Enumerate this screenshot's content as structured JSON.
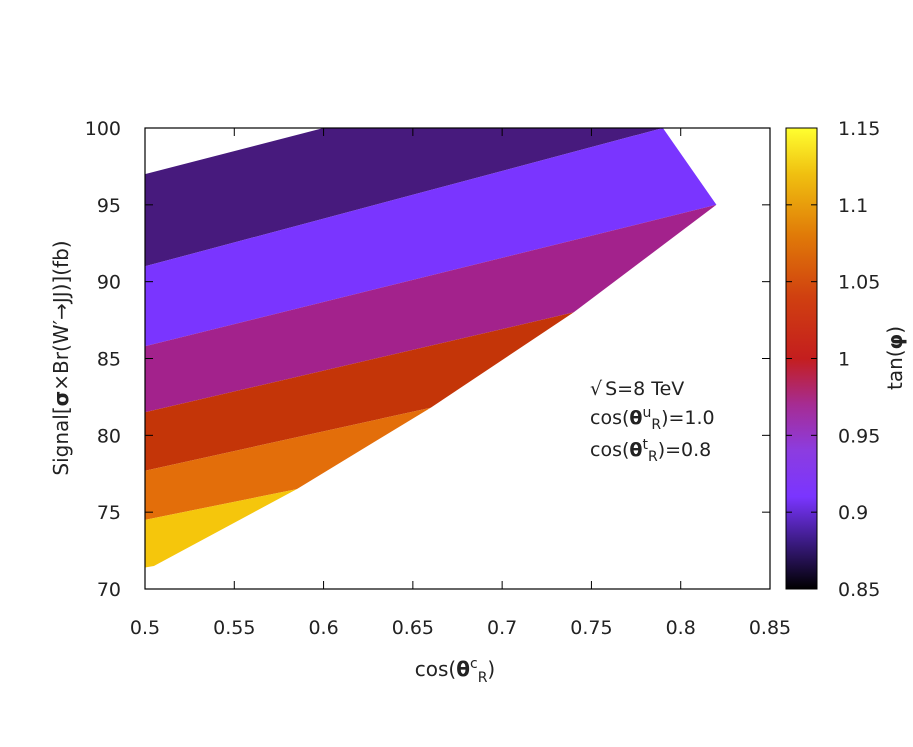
{
  "chart_data": {
    "type": "area",
    "xlabel": {
      "prefix": "cos(",
      "theta": "θ",
      "sup": "c",
      "sub": "R",
      "suffix": ")"
    },
    "ylabel": {
      "prefix": "Signal[",
      "sigma": "σ",
      "times": "×",
      "middle": "Br(W′→JJ)](fb)"
    },
    "xlim": [
      0.5,
      0.85
    ],
    "ylim": [
      70,
      100
    ],
    "xticks": [
      "0.5",
      "0.55",
      "0.6",
      "0.65",
      "0.7",
      "0.75",
      "0.8",
      "0.85"
    ],
    "yticks": [
      "70",
      "75",
      "80",
      "85",
      "90",
      "95",
      "100"
    ],
    "colorbar": {
      "label": {
        "prefix": "tan(",
        "phi": "φ",
        "suffix": ")"
      },
      "range": [
        0.85,
        1.15
      ],
      "ticks": [
        "0.85",
        "0.9",
        "0.95",
        "1",
        "1.05",
        "1.1",
        "1.15"
      ],
      "stops": [
        {
          "v": 0.85,
          "color": "#000000"
        },
        {
          "v": 0.88,
          "color": "#3a1a80"
        },
        {
          "v": 0.91,
          "color": "#7a35ff"
        },
        {
          "v": 0.94,
          "color": "#8c3ce0"
        },
        {
          "v": 0.97,
          "color": "#a62c93"
        },
        {
          "v": 1.0,
          "color": "#c41e1e"
        },
        {
          "v": 1.04,
          "color": "#d04010"
        },
        {
          "v": 1.08,
          "color": "#e07a08"
        },
        {
          "v": 1.12,
          "color": "#f0c010"
        },
        {
          "v": 1.15,
          "color": "#ffff30"
        }
      ]
    },
    "bands": [
      {
        "tan_phi": 0.875,
        "color": "#471a7d",
        "points": [
          [
            0.5,
            91.0
          ],
          [
            0.5,
            97.0
          ],
          [
            0.5,
            100.0
          ],
          [
            0.79,
            100.0
          ],
          [
            0.79,
            100.0
          ],
          [
            0.5,
            91.0
          ]
        ]
      },
      {
        "tan_phi": 0.9,
        "color": "#7a35ff",
        "points": [
          [
            0.5,
            85.8
          ],
          [
            0.5,
            91.0
          ],
          [
            0.79,
            100.0
          ],
          [
            0.82,
            95.0
          ],
          [
            0.5,
            85.8
          ]
        ]
      },
      {
        "tan_phi": 0.95,
        "color": "#a3228c",
        "points": [
          [
            0.5,
            81.5
          ],
          [
            0.5,
            85.8
          ],
          [
            0.82,
            95.0
          ],
          [
            0.74,
            88.0
          ],
          [
            0.5,
            81.5
          ]
        ]
      },
      {
        "tan_phi": 1.025,
        "color": "#c43508",
        "points": [
          [
            0.5,
            77.7
          ],
          [
            0.5,
            81.5
          ],
          [
            0.74,
            88.0
          ],
          [
            0.66,
            81.8
          ],
          [
            0.5,
            77.7
          ]
        ]
      },
      {
        "tan_phi": 1.075,
        "color": "#e36e0a",
        "points": [
          [
            0.5,
            74.5
          ],
          [
            0.5,
            77.7
          ],
          [
            0.66,
            81.8
          ],
          [
            0.585,
            76.5
          ],
          [
            0.5,
            74.5
          ]
        ]
      },
      {
        "tan_phi": 1.125,
        "color": "#f5c60c",
        "points": [
          [
            0.5,
            71.4
          ],
          [
            0.5,
            74.5
          ],
          [
            0.585,
            76.5
          ],
          [
            0.505,
            71.5
          ],
          [
            0.5,
            71.4
          ]
        ]
      }
    ],
    "top_band_left_corner": [
      0.5,
      97.0
    ],
    "top_band_top_left": [
      0.6,
      100.0
    ],
    "annotations": {
      "energy": {
        "sqrt": "√",
        "text": "S=8 TeV"
      },
      "cos_u": {
        "prefix": "cos(",
        "theta": "θ",
        "sup": "u",
        "sub": "R",
        "suffix": ")=1.0"
      },
      "cos_t": {
        "prefix": "cos(",
        "theta": "θ",
        "sup": "t",
        "sub": "R",
        "suffix": ")=0.8"
      }
    }
  }
}
